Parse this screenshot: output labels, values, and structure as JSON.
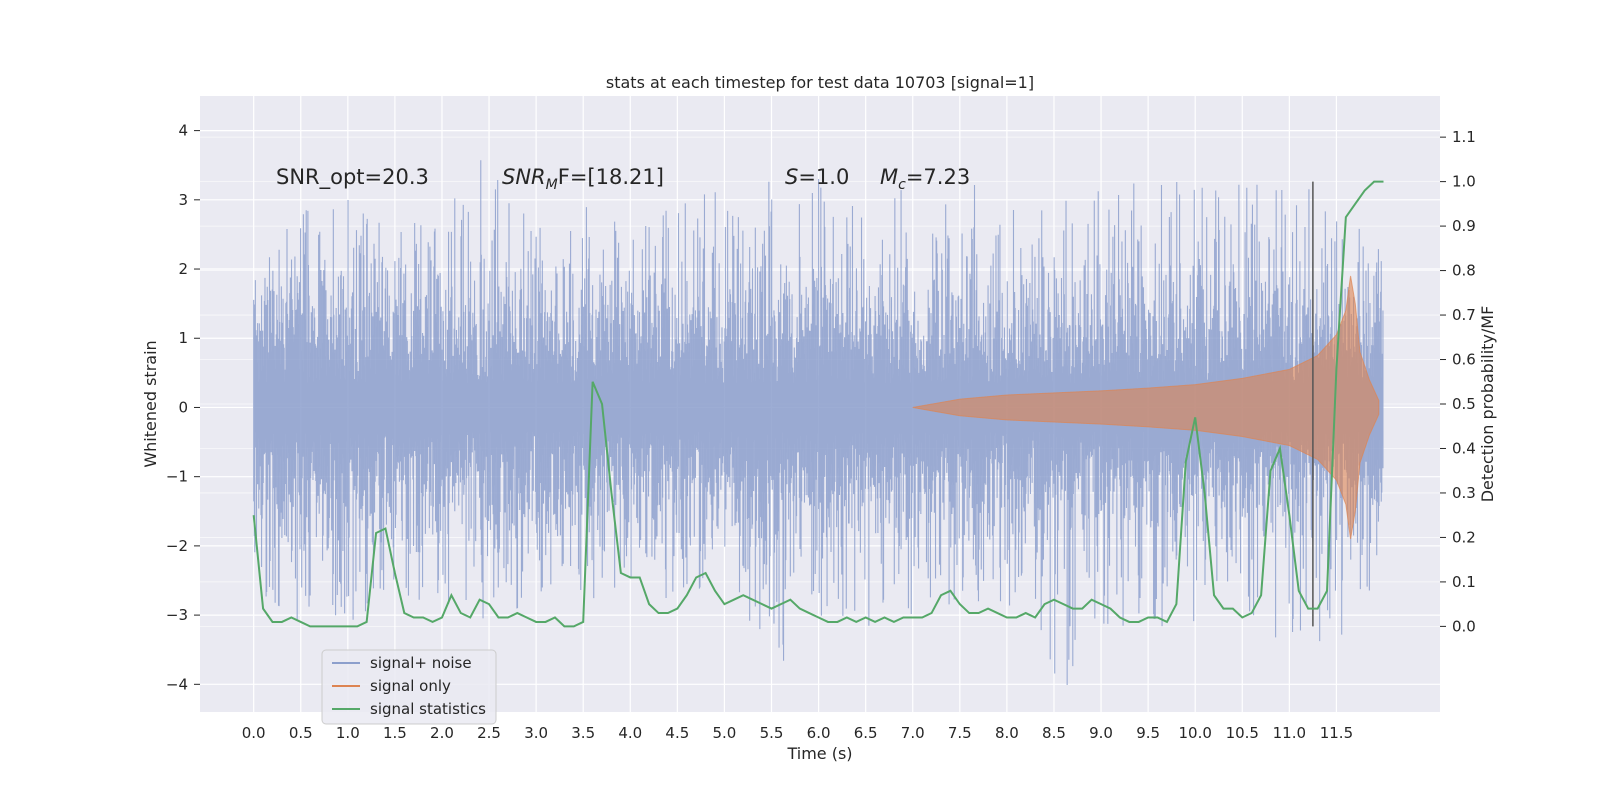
{
  "chart_data": {
    "type": "line",
    "title": "stats at each timestep for test data 10703 [signal=1]",
    "xlabel": "Time (s)",
    "ylabel": "Whitened strain",
    "ylabel_right": "Detection probability/MF",
    "xlim": [
      -0.57,
      12.6
    ],
    "ylim": [
      -4.4,
      4.5
    ],
    "ylim_right": [
      -0.1925,
      1.1925
    ],
    "x_ticks": [
      "0.0",
      "0.5",
      "1.0",
      "1.5",
      "2.0",
      "2.5",
      "3.0",
      "3.5",
      "4.0",
      "4.5",
      "5.0",
      "5.5",
      "6.0",
      "6.5",
      "7.0",
      "7.5",
      "8.0",
      "8.5",
      "9.0",
      "9.5",
      "10.0",
      "10.5",
      "11.0",
      "11.5"
    ],
    "y_ticks": [
      "4",
      "3",
      "2",
      "1",
      "0",
      "−1",
      "−2",
      "−3",
      "−4"
    ],
    "y_ticks_right": [
      "1.1",
      "1.0",
      "0.9",
      "0.8",
      "0.7",
      "0.6",
      "0.5",
      "0.4",
      "0.3",
      "0.2",
      "0.1",
      "0.0"
    ],
    "grid": true,
    "legend_position": "lower-left",
    "annotations": {
      "snr_opt": "SNR_opt=20.3",
      "snr_mf_sym": "SNR",
      "snr_mf_sub": "M",
      "snr_mf_tail": "F=[18.21]",
      "s_sym": "S",
      "s_val": "=1.0",
      "mc_sym": "M",
      "mc_sub": "c",
      "mc_val": "=7.23"
    },
    "vline_x": 11.25,
    "series": [
      {
        "name": "signal+ noise",
        "color": "#8c9fcc",
        "t_range": [
          0.0,
          12.0
        ],
        "envelope_std": 0.95,
        "peak_max": [
          [
            0.0,
            1.8
          ],
          [
            0.5,
            2.9
          ],
          [
            1.0,
            3.0
          ],
          [
            1.5,
            2.5
          ],
          [
            2.0,
            2.9
          ],
          [
            2.5,
            3.85
          ],
          [
            3.0,
            2.9
          ],
          [
            3.5,
            2.9
          ],
          [
            4.0,
            3.0
          ],
          [
            4.5,
            3.0
          ],
          [
            5.0,
            3.2
          ],
          [
            5.5,
            3.3
          ],
          [
            6.0,
            3.3
          ],
          [
            6.5,
            3.0
          ],
          [
            7.0,
            3.3
          ],
          [
            7.5,
            3.2
          ],
          [
            8.0,
            3.3
          ],
          [
            8.5,
            3.0
          ],
          [
            9.0,
            3.2
          ],
          [
            9.3,
            4.1
          ],
          [
            9.5,
            3.1
          ],
          [
            10.0,
            3.5
          ],
          [
            10.5,
            3.2
          ],
          [
            11.0,
            3.3
          ],
          [
            11.5,
            3.0
          ],
          [
            12.0,
            2.5
          ]
        ],
        "peak_min": [
          [
            0.0,
            -2.6
          ],
          [
            0.5,
            -3.1
          ],
          [
            1.0,
            -3.1
          ],
          [
            1.5,
            -2.8
          ],
          [
            2.0,
            -3.0
          ],
          [
            2.5,
            -3.2
          ],
          [
            3.0,
            -2.7
          ],
          [
            3.5,
            -2.8
          ],
          [
            4.0,
            -2.6
          ],
          [
            4.5,
            -2.8
          ],
          [
            5.0,
            -2.6
          ],
          [
            5.5,
            -3.5
          ],
          [
            5.6,
            -3.85
          ],
          [
            6.0,
            -3.0
          ],
          [
            6.5,
            -3.2
          ],
          [
            7.0,
            -3.0
          ],
          [
            7.5,
            -2.8
          ],
          [
            8.0,
            -2.8
          ],
          [
            8.6,
            -4.1
          ],
          [
            9.0,
            -3.2
          ],
          [
            9.5,
            -3.1
          ],
          [
            10.0,
            -3.3
          ],
          [
            10.5,
            -3.5
          ],
          [
            11.0,
            -3.55
          ],
          [
            11.5,
            -3.45
          ],
          [
            12.0,
            -2.3
          ]
        ]
      },
      {
        "name": "signal only",
        "color": "#dd8452",
        "t_range": [
          7.0,
          11.95
        ],
        "amplitude": [
          [
            7.0,
            0.0
          ],
          [
            7.5,
            0.12
          ],
          [
            8.0,
            0.18
          ],
          [
            8.5,
            0.21
          ],
          [
            9.0,
            0.24
          ],
          [
            9.5,
            0.28
          ],
          [
            10.0,
            0.33
          ],
          [
            10.5,
            0.42
          ],
          [
            11.0,
            0.55
          ],
          [
            11.3,
            0.75
          ],
          [
            11.5,
            1.05
          ],
          [
            11.6,
            1.4
          ],
          [
            11.65,
            1.9
          ],
          [
            11.7,
            1.5
          ],
          [
            11.75,
            0.8
          ],
          [
            11.85,
            0.4
          ],
          [
            11.95,
            0.1
          ]
        ]
      },
      {
        "name": "signal statistics",
        "color": "#55a868",
        "x": [
          0.0,
          0.1,
          0.2,
          0.3,
          0.4,
          0.5,
          0.6,
          0.7,
          0.8,
          0.9,
          1.0,
          1.1,
          1.2,
          1.3,
          1.4,
          1.5,
          1.6,
          1.7,
          1.8,
          1.9,
          2.0,
          2.1,
          2.2,
          2.3,
          2.4,
          2.5,
          2.6,
          2.7,
          2.8,
          2.9,
          3.0,
          3.1,
          3.2,
          3.3,
          3.4,
          3.5,
          3.6,
          3.7,
          3.8,
          3.9,
          4.0,
          4.1,
          4.2,
          4.3,
          4.4,
          4.5,
          4.6,
          4.7,
          4.8,
          4.9,
          5.0,
          5.1,
          5.2,
          5.3,
          5.4,
          5.5,
          5.6,
          5.7,
          5.8,
          5.9,
          6.0,
          6.1,
          6.2,
          6.3,
          6.4,
          6.5,
          6.6,
          6.7,
          6.8,
          6.9,
          7.0,
          7.1,
          7.2,
          7.3,
          7.4,
          7.5,
          7.6,
          7.7,
          7.8,
          7.9,
          8.0,
          8.1,
          8.2,
          8.3,
          8.4,
          8.5,
          8.6,
          8.7,
          8.8,
          8.9,
          9.0,
          9.1,
          9.2,
          9.3,
          9.4,
          9.5,
          9.6,
          9.7,
          9.8,
          9.9,
          10.0,
          10.1,
          10.2,
          10.3,
          10.4,
          10.5,
          10.6,
          10.7,
          10.8,
          10.9,
          11.0,
          11.1,
          11.2,
          11.3,
          11.4,
          11.5,
          11.6,
          11.7,
          11.8,
          11.9,
          12.0
        ],
        "y": [
          0.25,
          0.04,
          0.01,
          0.01,
          0.02,
          0.01,
          0.0,
          0.0,
          0.0,
          0.0,
          0.0,
          0.0,
          0.01,
          0.21,
          0.22,
          0.12,
          0.03,
          0.02,
          0.02,
          0.01,
          0.02,
          0.07,
          0.03,
          0.02,
          0.06,
          0.05,
          0.02,
          0.02,
          0.03,
          0.02,
          0.01,
          0.01,
          0.02,
          0.0,
          0.0,
          0.01,
          0.55,
          0.5,
          0.3,
          0.12,
          0.11,
          0.11,
          0.05,
          0.03,
          0.03,
          0.04,
          0.07,
          0.11,
          0.12,
          0.08,
          0.05,
          0.06,
          0.07,
          0.06,
          0.05,
          0.04,
          0.05,
          0.06,
          0.04,
          0.03,
          0.02,
          0.01,
          0.01,
          0.02,
          0.01,
          0.02,
          0.01,
          0.02,
          0.01,
          0.02,
          0.02,
          0.02,
          0.03,
          0.07,
          0.08,
          0.05,
          0.03,
          0.03,
          0.04,
          0.03,
          0.02,
          0.02,
          0.03,
          0.02,
          0.05,
          0.06,
          0.05,
          0.04,
          0.04,
          0.06,
          0.05,
          0.04,
          0.02,
          0.01,
          0.01,
          0.02,
          0.02,
          0.01,
          0.05,
          0.37,
          0.47,
          0.3,
          0.07,
          0.04,
          0.04,
          0.02,
          0.03,
          0.07,
          0.35,
          0.4,
          0.25,
          0.08,
          0.04,
          0.04,
          0.08,
          0.58,
          0.92,
          0.95,
          0.98,
          1.0,
          1.0
        ]
      }
    ]
  }
}
